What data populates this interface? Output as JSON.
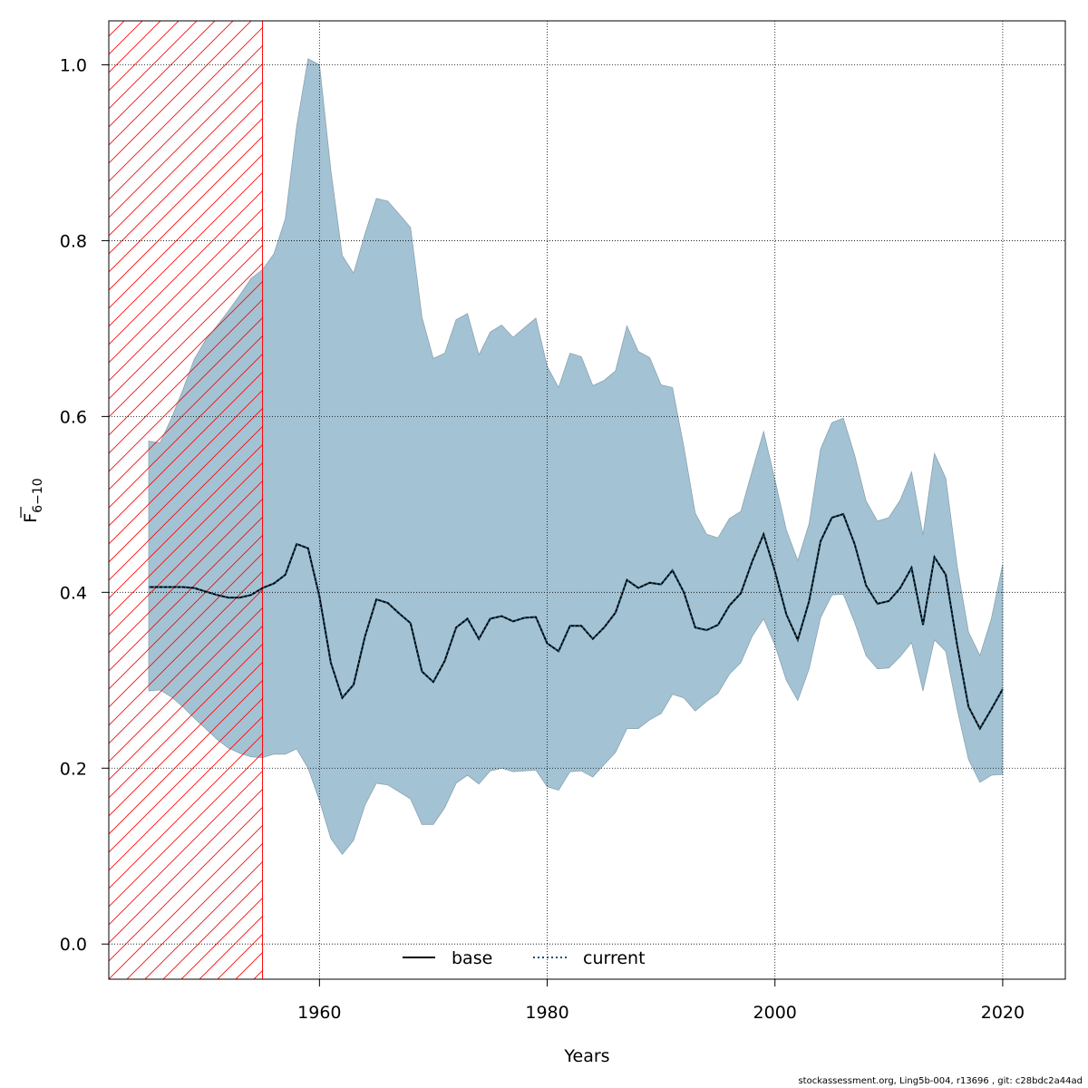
{
  "footer": "stockassessment.org, Ling5b-004, r13696 , git: c28bdc2a44ad",
  "chart_data": {
    "type": "line",
    "xlabel": "Years",
    "ylabel_main": "F",
    "ylabel_sub": "6−10",
    "xlim": [
      1941.5,
      2025.5
    ],
    "ylim": [
      -0.04,
      1.05
    ],
    "x_ticks": [
      1960,
      1980,
      2000,
      2020
    ],
    "y_ticks": [
      0.0,
      0.2,
      0.4,
      0.6,
      0.8,
      1.0
    ],
    "y_tick_labels": [
      "0.0",
      "0.2",
      "0.4",
      "0.6",
      "0.8",
      "1.0"
    ],
    "grid": true,
    "legend_position": "bottom-center",
    "hatched_region": {
      "x_start": 1941.5,
      "x_end": 1955,
      "color": "#ff0000"
    },
    "band_color": "#a3c3d4",
    "series": [
      {
        "name": "base",
        "style": "solid",
        "color": "#000000"
      },
      {
        "name": "current",
        "style": "dotted",
        "color": "#1b4f72"
      }
    ],
    "x": [
      1945,
      1946,
      1947,
      1948,
      1949,
      1950,
      1951,
      1952,
      1953,
      1954,
      1955,
      1956,
      1957,
      1958,
      1959,
      1960,
      1961,
      1962,
      1963,
      1964,
      1965,
      1966,
      1967,
      1968,
      1969,
      1970,
      1971,
      1972,
      1973,
      1974,
      1975,
      1976,
      1977,
      1978,
      1979,
      1980,
      1981,
      1982,
      1983,
      1984,
      1985,
      1986,
      1987,
      1988,
      1989,
      1990,
      1991,
      1992,
      1993,
      1994,
      1995,
      1996,
      1997,
      1998,
      1999,
      2000,
      2001,
      2002,
      2003,
      2004,
      2005,
      2006,
      2007,
      2008,
      2009,
      2010,
      2011,
      2012,
      2013,
      2014,
      2015,
      2016,
      2017,
      2018,
      2019,
      2020
    ],
    "estimate": [
      0.406,
      0.406,
      0.406,
      0.406,
      0.405,
      0.401,
      0.397,
      0.394,
      0.394,
      0.397,
      0.405,
      0.41,
      0.42,
      0.455,
      0.45,
      0.395,
      0.32,
      0.28,
      0.295,
      0.35,
      0.392,
      0.388,
      0.376,
      0.365,
      0.31,
      0.298,
      0.322,
      0.36,
      0.37,
      0.347,
      0.37,
      0.373,
      0.367,
      0.371,
      0.372,
      0.342,
      0.333,
      0.362,
      0.362,
      0.347,
      0.36,
      0.377,
      0.414,
      0.405,
      0.411,
      0.409,
      0.425,
      0.4,
      0.36,
      0.357,
      0.363,
      0.385,
      0.399,
      0.435,
      0.466,
      0.424,
      0.375,
      0.346,
      0.39,
      0.458,
      0.485,
      0.489,
      0.455,
      0.408,
      0.387,
      0.39,
      0.405,
      0.428,
      0.363,
      0.44,
      0.42,
      0.34,
      0.27,
      0.245,
      0.267,
      0.29
    ],
    "lower": [
      0.288,
      0.289,
      0.281,
      0.27,
      0.257,
      0.245,
      0.233,
      0.223,
      0.217,
      0.213,
      0.212,
      0.216,
      0.216,
      0.222,
      0.2,
      0.163,
      0.12,
      0.102,
      0.118,
      0.158,
      0.183,
      0.181,
      0.173,
      0.165,
      0.136,
      0.136,
      0.155,
      0.183,
      0.192,
      0.182,
      0.197,
      0.2,
      0.196,
      0.197,
      0.198,
      0.179,
      0.175,
      0.196,
      0.197,
      0.19,
      0.204,
      0.218,
      0.245,
      0.245,
      0.255,
      0.262,
      0.284,
      0.28,
      0.265,
      0.276,
      0.285,
      0.307,
      0.32,
      0.35,
      0.37,
      0.34,
      0.3,
      0.277,
      0.313,
      0.371,
      0.397,
      0.398,
      0.366,
      0.328,
      0.313,
      0.314,
      0.327,
      0.343,
      0.288,
      0.346,
      0.333,
      0.267,
      0.21,
      0.184,
      0.192,
      0.193
    ],
    "upper": [
      0.572,
      0.57,
      0.598,
      0.63,
      0.665,
      0.687,
      0.703,
      0.72,
      0.738,
      0.757,
      0.767,
      0.785,
      0.825,
      0.93,
      1.007,
      1.0,
      0.88,
      0.783,
      0.763,
      0.808,
      0.848,
      0.845,
      0.83,
      0.815,
      0.713,
      0.666,
      0.672,
      0.71,
      0.717,
      0.67,
      0.696,
      0.704,
      0.69,
      0.701,
      0.712,
      0.657,
      0.633,
      0.672,
      0.668,
      0.635,
      0.641,
      0.652,
      0.703,
      0.674,
      0.667,
      0.636,
      0.633,
      0.565,
      0.49,
      0.466,
      0.462,
      0.484,
      0.492,
      0.538,
      0.583,
      0.528,
      0.471,
      0.436,
      0.478,
      0.563,
      0.593,
      0.598,
      0.556,
      0.504,
      0.481,
      0.485,
      0.505,
      0.537,
      0.465,
      0.558,
      0.53,
      0.43,
      0.355,
      0.328,
      0.37,
      0.432
    ]
  },
  "legend": {
    "base_label": "base",
    "current_label": "current"
  }
}
